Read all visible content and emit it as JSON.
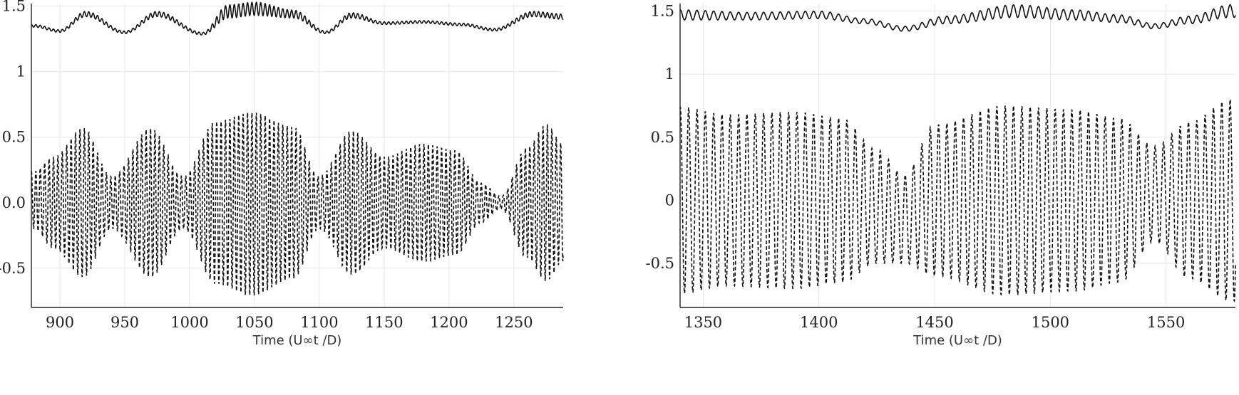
{
  "chart_data": [
    {
      "type": "line",
      "title": "",
      "xlabel": "Time (U∞t /D)",
      "ylabel": "",
      "xlim": [
        878,
        1288
      ],
      "ylim": [
        -0.8,
        1.52
      ],
      "grid": true,
      "x_ticks": [
        900,
        950,
        1000,
        1050,
        1100,
        1150,
        1200,
        1250
      ],
      "y_ticks": [
        -0.5,
        0.0,
        0.5,
        1,
        1.5
      ],
      "y_tick_labels": [
        "-0.5",
        "0.0",
        "0.5",
        "1",
        "1.5"
      ],
      "series": [
        {
          "style": "solid",
          "x": [
            880,
            900,
            920,
            950,
            975,
            1010,
            1030,
            1050,
            1080,
            1105,
            1125,
            1150,
            1180,
            1210,
            1235,
            1265,
            1288
          ],
          "envelope_center": [
            1.35,
            1.31,
            1.44,
            1.3,
            1.44,
            1.29,
            1.46,
            1.48,
            1.44,
            1.3,
            1.43,
            1.37,
            1.38,
            1.36,
            1.32,
            1.44,
            1.42
          ],
          "amplitude": [
            0.01,
            0.01,
            0.02,
            0.01,
            0.02,
            0.01,
            0.05,
            0.05,
            0.03,
            0.01,
            0.02,
            0.01,
            0.01,
            0.01,
            0.01,
            0.02,
            0.02
          ],
          "period": 3.4
        },
        {
          "style": "dashed",
          "x": [
            880,
            895,
            918,
            940,
            970,
            995,
            1020,
            1048,
            1080,
            1100,
            1125,
            1150,
            1180,
            1205,
            1225,
            1240,
            1260,
            1275,
            1288
          ],
          "envelope_center": [
            0.02,
            0.0,
            0.0,
            0.0,
            0.0,
            0.0,
            0.0,
            -0.01,
            0.0,
            0.0,
            0.0,
            0.0,
            0.0,
            0.0,
            0.0,
            0.0,
            0.0,
            0.0,
            0.0
          ],
          "amplitude": [
            0.22,
            0.35,
            0.57,
            0.2,
            0.57,
            0.2,
            0.62,
            0.7,
            0.58,
            0.2,
            0.55,
            0.35,
            0.45,
            0.4,
            0.15,
            0.05,
            0.42,
            0.6,
            0.45
          ],
          "period": 3.4
        }
      ]
    },
    {
      "type": "line",
      "title": "",
      "xlabel": "Time (U∞t /D)",
      "ylabel": "",
      "xlim": [
        1340,
        1580
      ],
      "ylim": [
        -0.85,
        1.56
      ],
      "grid": true,
      "x_ticks": [
        1350,
        1400,
        1450,
        1500,
        1550
      ],
      "y_ticks": [
        -0.5,
        0,
        0.5,
        1,
        1.5
      ],
      "y_tick_labels": [
        "-0.5",
        "0",
        "0.5",
        "1",
        "1.5"
      ],
      "series": [
        {
          "style": "solid",
          "x": [
            1340,
            1370,
            1400,
            1420,
            1437,
            1455,
            1485,
            1510,
            1530,
            1545,
            1560,
            1578
          ],
          "envelope_center": [
            1.47,
            1.46,
            1.47,
            1.42,
            1.36,
            1.43,
            1.5,
            1.47,
            1.44,
            1.38,
            1.43,
            1.5
          ],
          "amplitude": [
            0.04,
            0.03,
            0.03,
            0.02,
            0.02,
            0.03,
            0.05,
            0.04,
            0.03,
            0.02,
            0.03,
            0.05
          ],
          "period": 3.6
        },
        {
          "style": "dashed",
          "x": [
            1340,
            1360,
            1390,
            1410,
            1425,
            1437,
            1450,
            1480,
            1510,
            1530,
            1545,
            1560,
            1578
          ],
          "envelope_center": [
            0.0,
            0.0,
            0.0,
            0.0,
            -0.05,
            -0.15,
            0.0,
            0.0,
            0.0,
            0.0,
            0.05,
            0.0,
            0.0
          ],
          "amplitude": [
            0.74,
            0.68,
            0.7,
            0.65,
            0.45,
            0.35,
            0.6,
            0.75,
            0.72,
            0.65,
            0.38,
            0.62,
            0.8
          ],
          "period": 3.6
        }
      ]
    }
  ]
}
